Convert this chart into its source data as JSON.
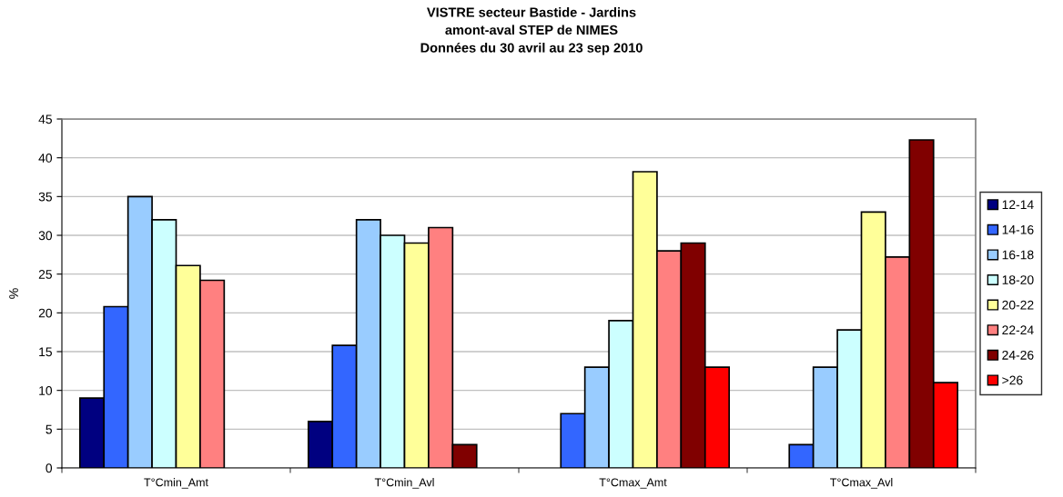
{
  "chart_data": {
    "type": "bar",
    "title": "VISTRE secteur Bastide - Jardins\namont-aval STEP de NIMES\nDonnées du 30 avril au 23 sep 2010",
    "ylabel": "%",
    "categories": [
      "T°Cmin_Amt",
      "T°Cmin_Avl",
      "T°Cmax_Amt",
      "T°Cmax_Avl"
    ],
    "series": [
      {
        "name": "12-14",
        "color": "#000080",
        "values": [
          9,
          6,
          null,
          null
        ]
      },
      {
        "name": "14-16",
        "color": "#3366ff",
        "values": [
          20.8,
          15.8,
          7,
          3
        ]
      },
      {
        "name": "16-18",
        "color": "#99ccff",
        "values": [
          35,
          32,
          13,
          13
        ]
      },
      {
        "name": "18-20",
        "color": "#ccffff",
        "values": [
          32,
          30,
          19,
          17.8
        ]
      },
      {
        "name": "20-22",
        "color": "#ffff99",
        "values": [
          26.1,
          29,
          38.2,
          33
        ]
      },
      {
        "name": "22-24",
        "color": "#ff8080",
        "values": [
          24.2,
          31,
          28,
          27.2
        ]
      },
      {
        "name": "24-26",
        "color": "#800000",
        "values": [
          null,
          3,
          29,
          42.3
        ]
      },
      {
        "name": ">26",
        "color": "#ff0000",
        "values": [
          null,
          null,
          13,
          11
        ]
      }
    ],
    "ylim": [
      0,
      45
    ],
    "yticks": [
      0,
      5,
      10,
      15,
      20,
      25,
      30,
      35,
      40,
      45
    ],
    "grid": "y",
    "legend": "right"
  }
}
